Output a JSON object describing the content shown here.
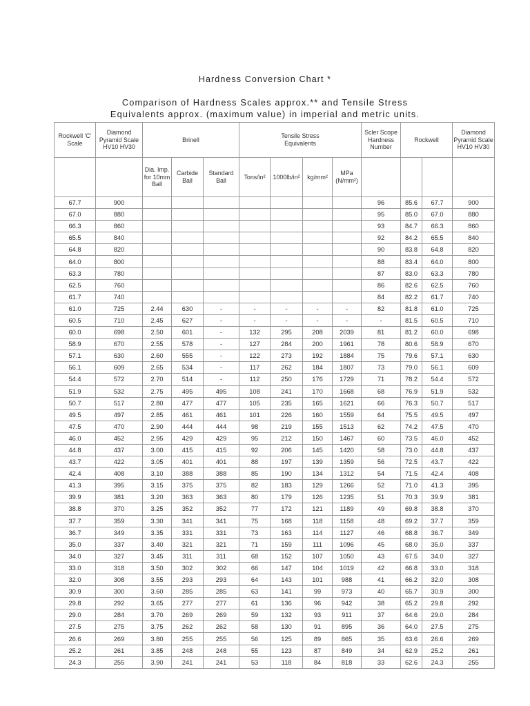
{
  "page": {
    "title": "Hardness Conversion Chart *",
    "subtitle": [
      "Comparison of Hardness Scales approx.** and Tensile Stress",
      "Equivalents approx. (maximum value) in imperial and metric units."
    ]
  },
  "colors": {
    "background": "#ffffff",
    "table_border": "#9a9a9a",
    "text": "#2a2a2a"
  },
  "table": {
    "group_headers": [
      {
        "label": "Rockwell 'C' Scale",
        "colspan": 1
      },
      {
        "label": "Diamond Pyramid Scale HV10 HV30",
        "colspan": 1
      },
      {
        "label": "Brinell",
        "colspan": 3
      },
      {
        "label": "Tensile Stress Equivalents",
        "colspan": 4
      },
      {
        "label": "Scler Scope Hardness Number",
        "colspan": 1
      },
      {
        "label": "Rockwell",
        "colspan": 2
      },
      {
        "label": "Diamond Pyramid Scale HV10 HV30",
        "colspan": 1
      }
    ],
    "sub_headers": [
      "",
      "",
      "Dia. Imp. for 10mm Ball",
      "Carbide Ball",
      "Standard Ball",
      "Tons/in²",
      "1000lb/in²",
      "kg/mm²",
      "MPa (N/mm²)",
      "",
      "",
      "",
      ""
    ],
    "rows": [
      [
        "67.7",
        "900",
        "",
        "",
        "",
        "",
        "",
        "",
        "",
        "96",
        "85.6",
        "67.7",
        "900"
      ],
      [
        "67.0",
        "880",
        "",
        "",
        "",
        "",
        "",
        "",
        "",
        "95",
        "85.0",
        "67.0",
        "880"
      ],
      [
        "66.3",
        "860",
        "",
        "",
        "",
        "",
        "",
        "",
        "",
        "93",
        "84.7",
        "66.3",
        "860"
      ],
      [
        "65.5",
        "840",
        "",
        "",
        "",
        "",
        "",
        "",
        "",
        "92",
        "84.2",
        "65.5",
        "840"
      ],
      [
        "64.8",
        "820",
        "",
        "",
        "",
        "",
        "",
        "",
        "",
        "90",
        "83.8",
        "64.8",
        "820"
      ],
      [
        "64.0",
        "800",
        "",
        "",
        "",
        "",
        "",
        "",
        "",
        "88",
        "83.4",
        "64.0",
        "800"
      ],
      [
        "63.3",
        "780",
        "",
        "",
        "",
        "",
        "",
        "",
        "",
        "87",
        "83.0",
        "63.3",
        "780"
      ],
      [
        "62.5",
        "760",
        "",
        "",
        "",
        "",
        "",
        "",
        "",
        "86",
        "82.6",
        "62.5",
        "760"
      ],
      [
        "61.7",
        "740",
        "",
        "",
        "",
        "",
        "",
        "",
        "",
        "84",
        "82.2",
        "61.7",
        "740"
      ],
      [
        "61.0",
        "725",
        "2.44",
        "630",
        "-",
        "-",
        "-",
        "-",
        "-",
        "82",
        "81.8",
        "61.0",
        "725"
      ],
      [
        "60.5",
        "710",
        "2.45",
        "627",
        "-",
        "-",
        "-",
        "-",
        "-",
        "-",
        "81.5",
        "60.5",
        "710"
      ],
      [
        "60.0",
        "698",
        "2.50",
        "601",
        "-",
        "132",
        "295",
        "208",
        "2039",
        "81",
        "81.2",
        "60.0",
        "698"
      ],
      [
        "58.9",
        "670",
        "2.55",
        "578",
        "-",
        "127",
        "284",
        "200",
        "1961",
        "78",
        "80.6",
        "58.9",
        "670"
      ],
      [
        "57.1",
        "630",
        "2.60",
        "555",
        "-",
        "122",
        "273",
        "192",
        "1884",
        "75",
        "79.6",
        "57.1",
        "630"
      ],
      [
        "56.1",
        "609",
        "2.65",
        "534",
        "-",
        "117",
        "262",
        "184",
        "1807",
        "73",
        "79.0",
        "56.1",
        "609"
      ],
      [
        "54.4",
        "572",
        "2.70",
        "514",
        "-",
        "112",
        "250",
        "176",
        "1729",
        "71",
        "78.2",
        "54.4",
        "572"
      ],
      [
        "51.9",
        "532",
        "2.75",
        "495",
        "495",
        "108",
        "241",
        "170",
        "1668",
        "68",
        "76.9",
        "51.9",
        "532"
      ],
      [
        "50.7",
        "517",
        "2.80",
        "477",
        "477",
        "105",
        "235",
        "165",
        "1621",
        "66",
        "76.3",
        "50.7",
        "517"
      ],
      [
        "49.5",
        "497",
        "2.85",
        "461",
        "461",
        "101",
        "226",
        "160",
        "1559",
        "64",
        "75.5",
        "49.5",
        "497"
      ],
      [
        "47.5",
        "470",
        "2.90",
        "444",
        "444",
        "98",
        "219",
        "155",
        "1513",
        "62",
        "74.2",
        "47.5",
        "470"
      ],
      [
        "46.0",
        "452",
        "2.95",
        "429",
        "429",
        "95",
        "212",
        "150",
        "1467",
        "60",
        "73.5",
        "46.0",
        "452"
      ],
      [
        "44.8",
        "437",
        "3.00",
        "415",
        "415",
        "92",
        "206",
        "145",
        "1420",
        "58",
        "73.0",
        "44.8",
        "437"
      ],
      [
        "43.7",
        "422",
        "3.05",
        "401",
        "401",
        "88",
        "197",
        "139",
        "1359",
        "56",
        "72.5",
        "43.7",
        "422"
      ],
      [
        "42.4",
        "408",
        "3.10",
        "388",
        "388",
        "85",
        "190",
        "134",
        "1312",
        "54",
        "71.5",
        "42.4",
        "408"
      ],
      [
        "41.3",
        "395",
        "3.15",
        "375",
        "375",
        "82",
        "183",
        "129",
        "1266",
        "52",
        "71.0",
        "41.3",
        "395"
      ],
      [
        "39.9",
        "381",
        "3.20",
        "363",
        "363",
        "80",
        "179",
        "126",
        "1235",
        "51",
        "70.3",
        "39.9",
        "381"
      ],
      [
        "38.8",
        "370",
        "3.25",
        "352",
        "352",
        "77",
        "172",
        "121",
        "1189",
        "49",
        "69.8",
        "38.8",
        "370"
      ],
      [
        "37.7",
        "359",
        "3.30",
        "341",
        "341",
        "75",
        "168",
        "118",
        "1158",
        "48",
        "69.2",
        "37.7",
        "359"
      ],
      [
        "36.7",
        "349",
        "3.35",
        "331",
        "331",
        "73",
        "163",
        "114",
        "1127",
        "46",
        "68.8",
        "36.7",
        "349"
      ],
      [
        "35.0",
        "337",
        "3.40",
        "321",
        "321",
        "71",
        "159",
        "111",
        "1096",
        "45",
        "68.0",
        "35.0",
        "337"
      ],
      [
        "34.0",
        "327",
        "3.45",
        "311",
        "311",
        "68",
        "152",
        "107",
        "1050",
        "43",
        "67.5",
        "34.0",
        "327"
      ],
      [
        "33.0",
        "318",
        "3.50",
        "302",
        "302",
        "66",
        "147",
        "104",
        "1019",
        "42",
        "66.8",
        "33.0",
        "318"
      ],
      [
        "32.0",
        "308",
        "3.55",
        "293",
        "293",
        "64",
        "143",
        "101",
        "988",
        "41",
        "66.2",
        "32.0",
        "308"
      ],
      [
        "30.9",
        "300",
        "3.60",
        "285",
        "285",
        "63",
        "141",
        "99",
        "973",
        "40",
        "65.7",
        "30.9",
        "300"
      ],
      [
        "29.8",
        "292",
        "3.65",
        "277",
        "277",
        "61",
        "136",
        "96",
        "942",
        "38",
        "65.2",
        "29.8",
        "292"
      ],
      [
        "29.0",
        "284",
        "3.70",
        "269",
        "269",
        "59",
        "132",
        "93",
        "911",
        "37",
        "64.6",
        "29.0",
        "284"
      ],
      [
        "27.5",
        "275",
        "3.75",
        "262",
        "262",
        "58",
        "130",
        "91",
        "895",
        "36",
        "64.0",
        "27.5",
        "275"
      ],
      [
        "26.6",
        "269",
        "3.80",
        "255",
        "255",
        "56",
        "125",
        "89",
        "865",
        "35",
        "63.6",
        "26.6",
        "269"
      ],
      [
        "25.2",
        "261",
        "3.85",
        "248",
        "248",
        "55",
        "123",
        "87",
        "849",
        "34",
        "62.9",
        "25.2",
        "261"
      ],
      [
        "24.3",
        "255",
        "3.90",
        "241",
        "241",
        "53",
        "118",
        "84",
        "818",
        "33",
        "62.6",
        "24.3",
        "255"
      ]
    ]
  }
}
